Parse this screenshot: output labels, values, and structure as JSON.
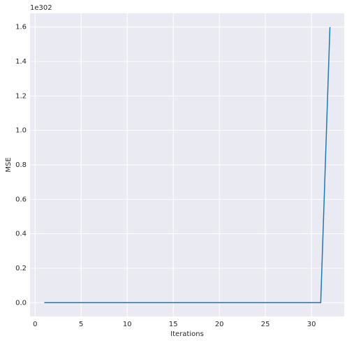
{
  "chart_data": {
    "type": "line",
    "x": [
      1,
      2,
      3,
      4,
      5,
      6,
      7,
      8,
      9,
      10,
      11,
      12,
      13,
      14,
      15,
      16,
      17,
      18,
      19,
      20,
      21,
      22,
      23,
      24,
      25,
      26,
      27,
      28,
      29,
      30,
      31,
      32
    ],
    "values": [
      0,
      0,
      0,
      0,
      0,
      0,
      0,
      0,
      0,
      0,
      0,
      0,
      0,
      0,
      0,
      0,
      0,
      0,
      0,
      0,
      0,
      0,
      0,
      0,
      0,
      0,
      0,
      0,
      0,
      0,
      0,
      1.6
    ],
    "color": "#1f77b4",
    "xlabel": "Iterations",
    "ylabel": "MSE",
    "y_offset_text": "1e302",
    "xlim": [
      -0.55,
      33.55
    ],
    "xticks": [
      0,
      5,
      10,
      15,
      20,
      25,
      30
    ],
    "ylim": [
      -0.08,
      1.68
    ],
    "yticks": [
      {
        "value": 0,
        "label": "0.0"
      },
      {
        "value": 0.2,
        "label": "0.2"
      },
      {
        "value": 0.4,
        "label": "0.4"
      },
      {
        "value": 0.6,
        "label": "0.6"
      },
      {
        "value": 0.8,
        "label": "0.8"
      },
      {
        "value": 1,
        "label": "1.0"
      },
      {
        "value": 1.2,
        "label": "1.2"
      },
      {
        "value": 1.4,
        "label": "1.4"
      },
      {
        "value": 1.6,
        "label": "1.6"
      }
    ],
    "grid": true
  }
}
